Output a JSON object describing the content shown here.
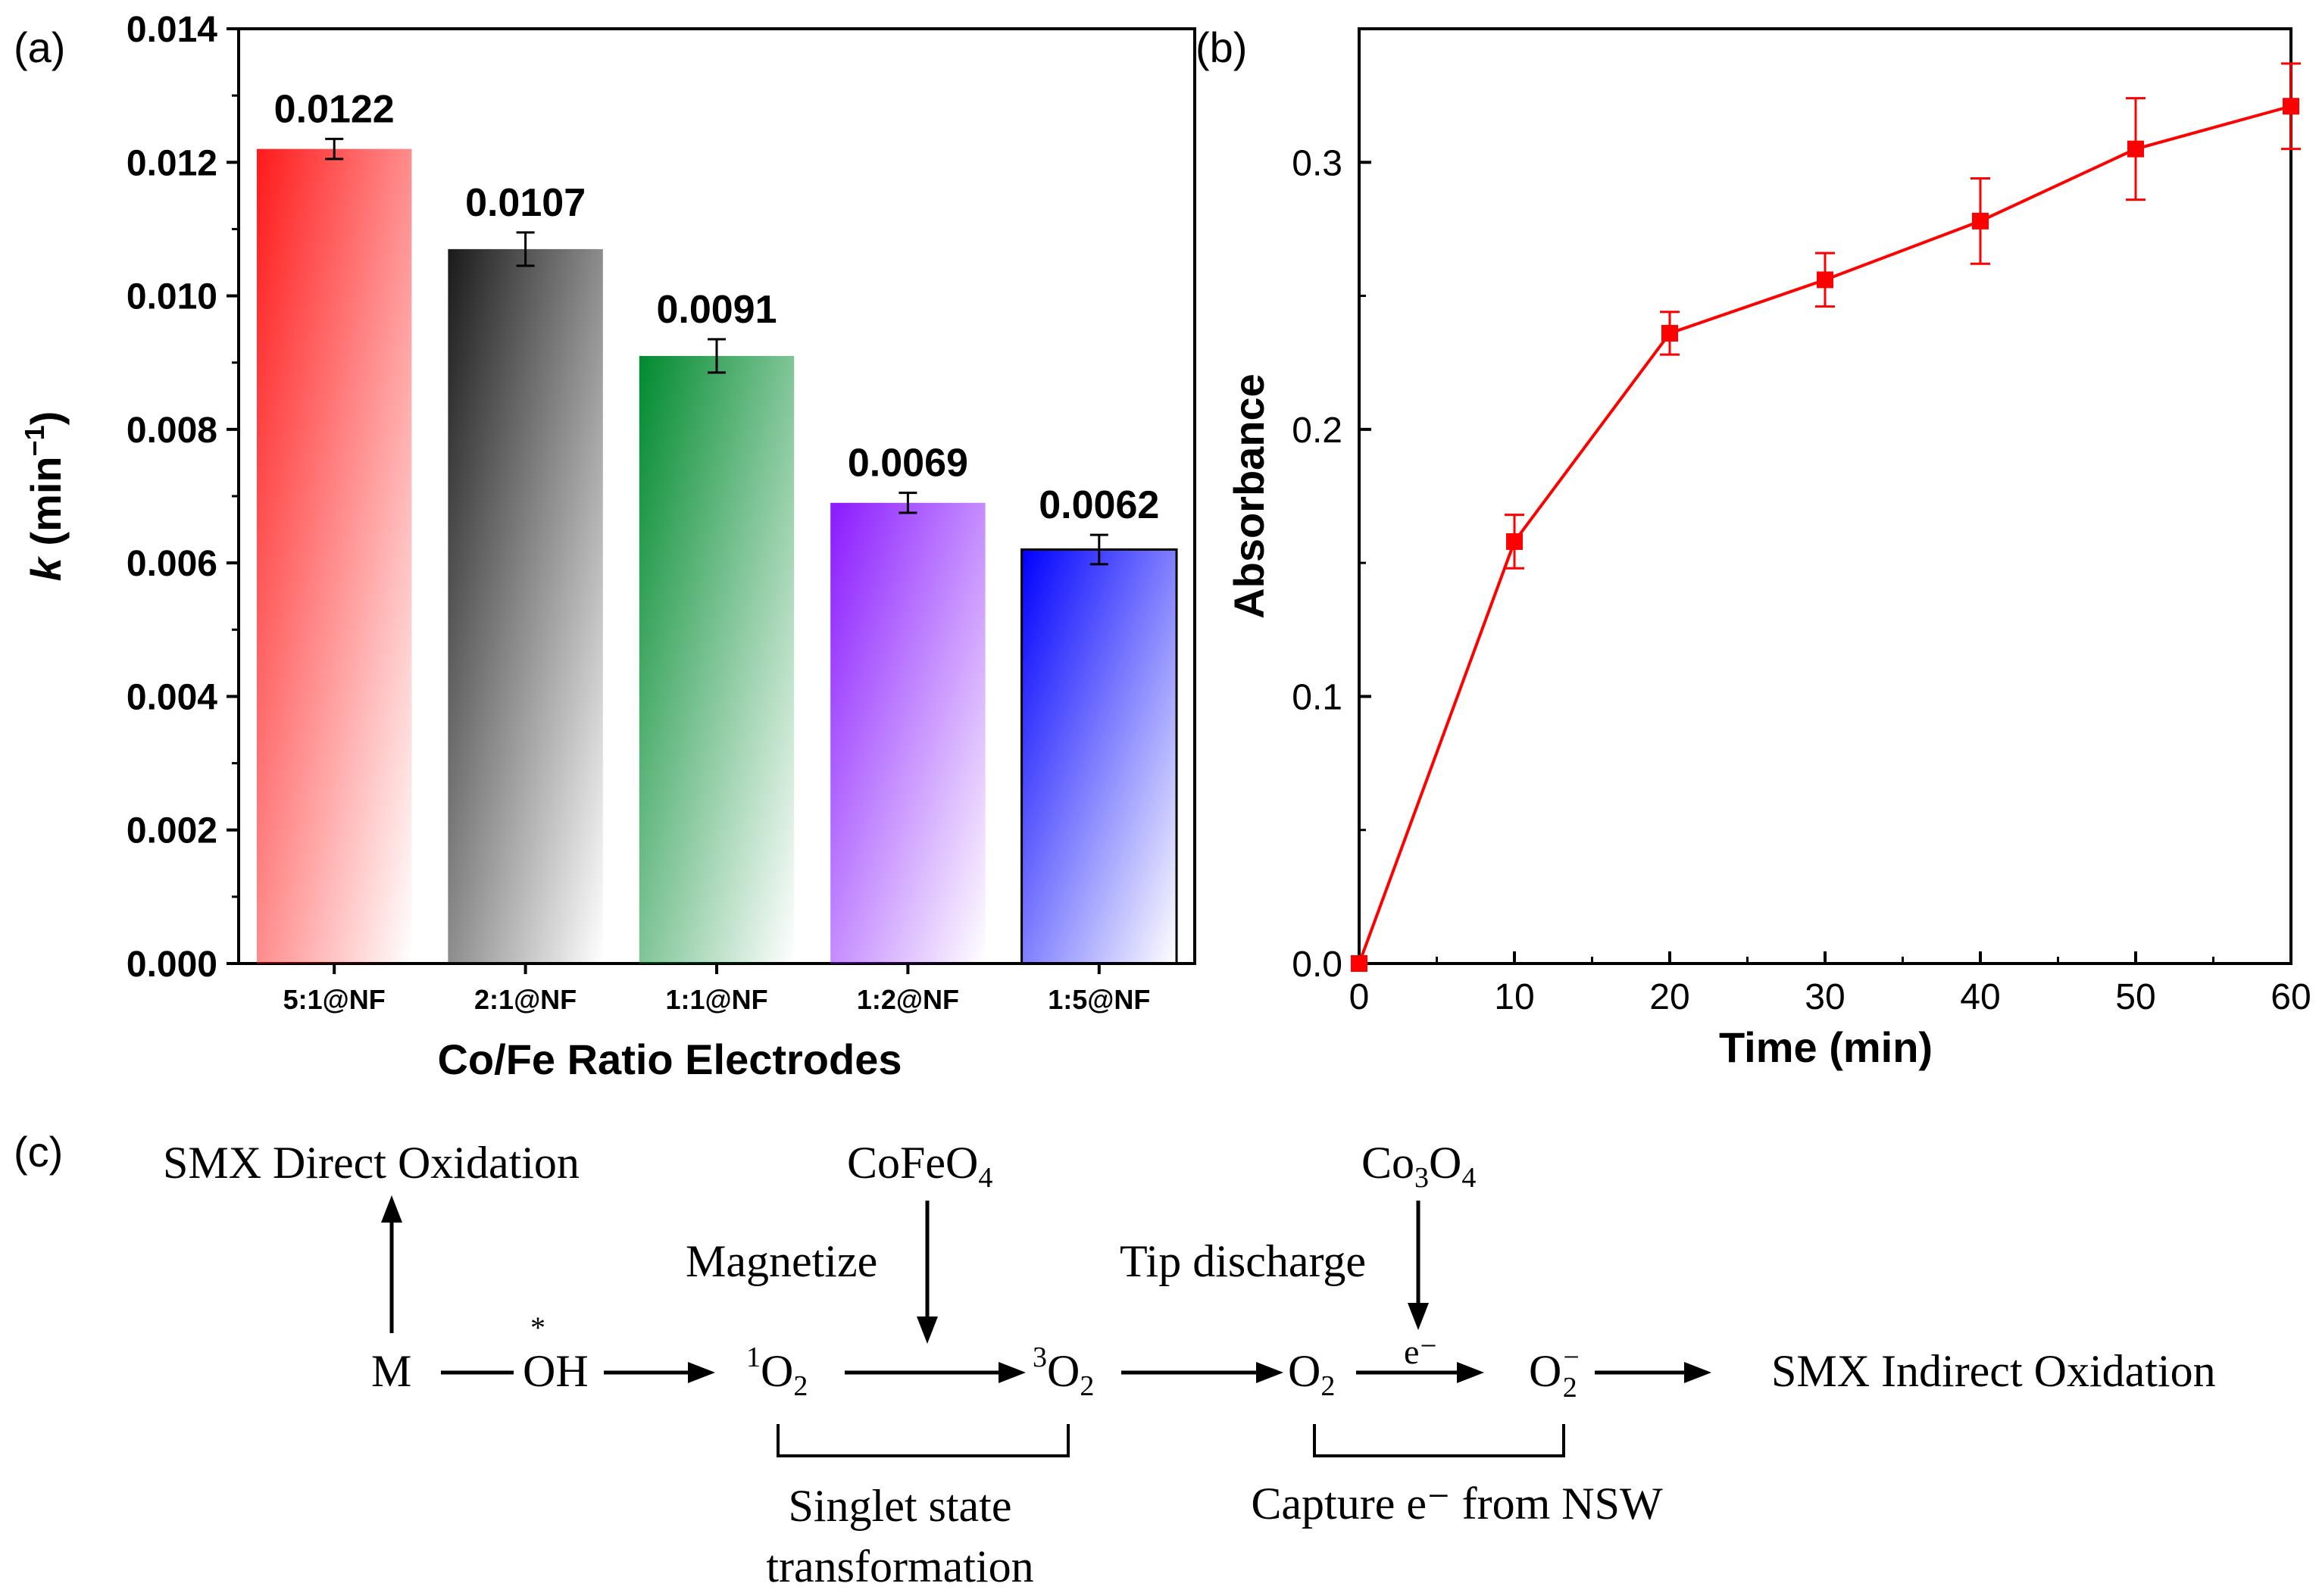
{
  "panel_labels": {
    "a": "(a)",
    "b": "(b)",
    "c": "(c)"
  },
  "chart_data": [
    {
      "type": "bar",
      "title": "",
      "categories": [
        "5:1@NF",
        "2:1@NF",
        "1:1@NF",
        "1:2@NF",
        "1:5@NF"
      ],
      "values": [
        0.0122,
        0.0107,
        0.0091,
        0.0069,
        0.0062
      ],
      "value_labels": [
        "0.0122",
        "0.0107",
        "0.0091",
        "0.0069",
        "0.0062"
      ],
      "errors": [
        0.00015,
        0.00025,
        0.00025,
        0.00015,
        0.00022
      ],
      "colors": [
        "#ff1a1a",
        "#1a1a1a",
        "#008a2e",
        "#8a1aff",
        "#0000ff"
      ],
      "xlabel": "Co/Fe Ratio Electrodes",
      "ylabel": "k (min−1)",
      "ylabel_parts": {
        "var": "k",
        "unit_prefix": " (min",
        "sup": "−1",
        "unit_suffix": ")"
      },
      "ylim": [
        0,
        0.014
      ],
      "yticks": [
        "0.000",
        "0.002",
        "0.004",
        "0.006",
        "0.008",
        "0.010",
        "0.012",
        "0.014"
      ]
    },
    {
      "type": "line",
      "title": "",
      "x": [
        0,
        10,
        20,
        30,
        40,
        50,
        60
      ],
      "y": [
        0.0,
        0.158,
        0.236,
        0.256,
        0.278,
        0.305,
        0.321
      ],
      "errors": [
        0.0,
        0.01,
        0.008,
        0.01,
        0.016,
        0.019,
        0.016
      ],
      "color": "#ff0000",
      "xlabel": "Time (min)",
      "ylabel": "Absorbance",
      "xlim": [
        0,
        60
      ],
      "ylim": [
        0,
        0.35
      ],
      "xticks": [
        "0",
        "10",
        "20",
        "30",
        "40",
        "50",
        "60"
      ],
      "yticks": [
        "0.0",
        "0.1",
        "0.2",
        "0.3"
      ]
    }
  ],
  "scheme": {
    "smx_direct": "SMX Direct Oxidation",
    "m": "M",
    "oh_star": "*",
    "oh": "OH",
    "singlet_o2_sup": "1",
    "o_letter": "O",
    "two": "2",
    "cofeo4_prefix": "CoFeO",
    "cofeo4_sub": "4",
    "magnetize": "Magnetize",
    "triplet_o2_sup": "3",
    "co3o4_co": "Co",
    "co3o4_sub3": "3",
    "co3o4_o": "O",
    "co3o4_sub4": "4",
    "tip_discharge": "Tip discharge",
    "electron": "e⁻",
    "superoxide_sup": "−",
    "smx_indirect": "SMX Indirect Oxidation",
    "singlet_label_1": "Singlet state",
    "singlet_label_2": "transformation",
    "capture_label": "Capture e⁻ from NSW"
  }
}
